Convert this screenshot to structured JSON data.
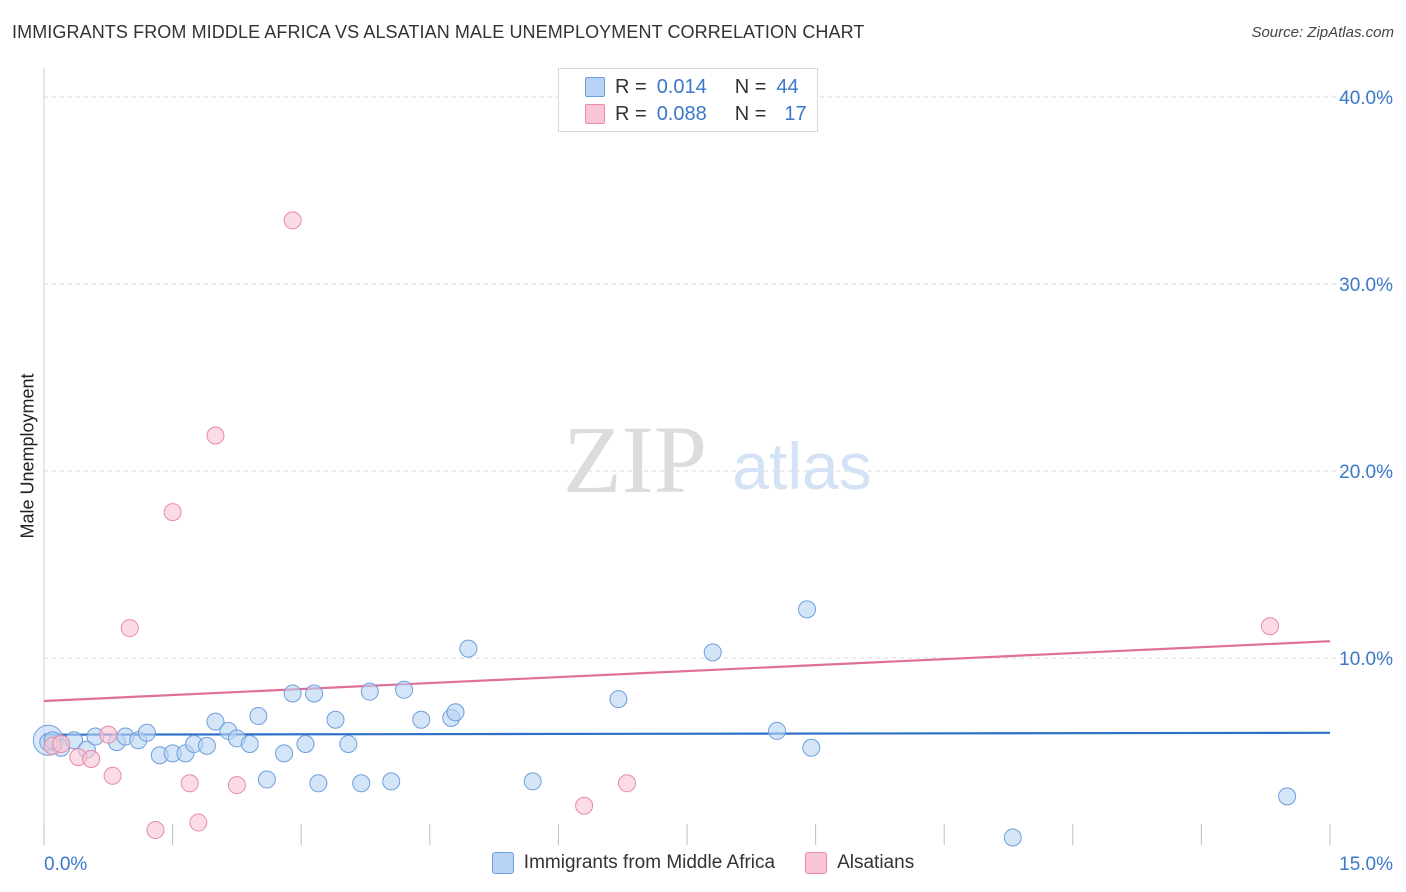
{
  "title": "IMMIGRANTS FROM MIDDLE AFRICA VS ALSATIAN MALE UNEMPLOYMENT CORRELATION CHART",
  "source": "Source: ZipAtlas.com",
  "watermark": {
    "zip": "ZIP",
    "atlas": "atlas"
  },
  "legend": {
    "r_label": "R =",
    "n_label": "N =",
    "series1": {
      "r": "0.014",
      "n": "44"
    },
    "series2": {
      "r": "0.088",
      "n": "17"
    }
  },
  "colors": {
    "blue_fill": "#b8d3f4",
    "blue_stroke": "#6e9fdc",
    "blue_line": "#2e6fc8",
    "pink_fill": "#f9c4d4",
    "pink_stroke": "#e88aa6",
    "pink_line": "#e0709a",
    "axis_text": "#3a78c9",
    "grid": "#d8d8d8"
  },
  "chart_data": {
    "type": "scatter",
    "title": "IMMIGRANTS FROM MIDDLE AFRICA VS ALSATIAN MALE UNEMPLOYMENT CORRELATION CHART",
    "xlabel": "",
    "ylabel": "Male Unemployment",
    "xlim": [
      0,
      15
    ],
    "ylim": [
      0,
      40
    ],
    "x_tick_labels": [
      {
        "value": 0,
        "label": "0.0%"
      },
      {
        "value": 15,
        "label": "15.0%"
      }
    ],
    "y_tick_labels": [
      {
        "value": 10,
        "label": "10.0%"
      },
      {
        "value": 20,
        "label": "20.0%"
      },
      {
        "value": 30,
        "label": "30.0%"
      },
      {
        "value": 40,
        "label": "40.0%"
      }
    ],
    "series": [
      {
        "name": "Immigrants from Middle Africa",
        "color": "blue",
        "trend": [
          [
            0,
            5.9
          ],
          [
            15,
            6.0
          ]
        ],
        "points": [
          [
            0.05,
            5.5
          ],
          [
            0.2,
            5.2
          ],
          [
            0.35,
            5.6
          ],
          [
            0.5,
            5.1
          ],
          [
            0.6,
            5.8
          ],
          [
            0.85,
            5.5
          ],
          [
            0.95,
            5.8
          ],
          [
            1.1,
            5.6
          ],
          [
            1.2,
            6.0
          ],
          [
            1.35,
            4.8
          ],
          [
            1.5,
            4.9
          ],
          [
            1.65,
            4.9
          ],
          [
            1.75,
            5.4
          ],
          [
            1.9,
            5.3
          ],
          [
            2.0,
            6.6
          ],
          [
            2.15,
            6.1
          ],
          [
            2.25,
            5.7
          ],
          [
            2.4,
            5.4
          ],
          [
            2.5,
            6.9
          ],
          [
            2.6,
            3.5
          ],
          [
            2.8,
            4.9
          ],
          [
            2.9,
            8.1
          ],
          [
            3.05,
            5.4
          ],
          [
            3.15,
            8.1
          ],
          [
            3.2,
            3.3
          ],
          [
            3.4,
            6.7
          ],
          [
            3.55,
            5.4
          ],
          [
            3.7,
            3.3
          ],
          [
            3.8,
            8.2
          ],
          [
            4.05,
            3.4
          ],
          [
            4.2,
            8.3
          ],
          [
            4.4,
            6.7
          ],
          [
            4.75,
            6.8
          ],
          [
            4.8,
            7.1
          ],
          [
            4.95,
            10.5
          ],
          [
            5.7,
            3.4
          ],
          [
            6.7,
            7.8
          ],
          [
            7.8,
            10.3
          ],
          [
            8.55,
            6.1
          ],
          [
            8.9,
            12.6
          ],
          [
            8.95,
            5.2
          ],
          [
            11.3,
            0.4
          ],
          [
            14.5,
            2.6
          ],
          [
            0.1,
            5.6
          ]
        ]
      },
      {
        "name": "Alsatians",
        "color": "pink",
        "trend": [
          [
            0,
            7.7
          ],
          [
            15,
            10.9
          ]
        ],
        "points": [
          [
            0.1,
            5.3
          ],
          [
            0.2,
            5.4
          ],
          [
            0.4,
            4.7
          ],
          [
            0.55,
            4.6
          ],
          [
            0.75,
            5.9
          ],
          [
            0.8,
            3.7
          ],
          [
            1.0,
            11.6
          ],
          [
            1.3,
            0.8
          ],
          [
            1.5,
            17.8
          ],
          [
            1.7,
            3.3
          ],
          [
            1.8,
            1.2
          ],
          [
            2.0,
            21.9
          ],
          [
            2.25,
            3.2
          ],
          [
            2.9,
            33.4
          ],
          [
            6.3,
            2.1
          ],
          [
            6.8,
            3.3
          ],
          [
            14.3,
            11.7
          ]
        ]
      }
    ]
  },
  "bottom_legend": {
    "series1_label": "Immigrants from Middle Africa",
    "series2_label": "Alsatians"
  }
}
